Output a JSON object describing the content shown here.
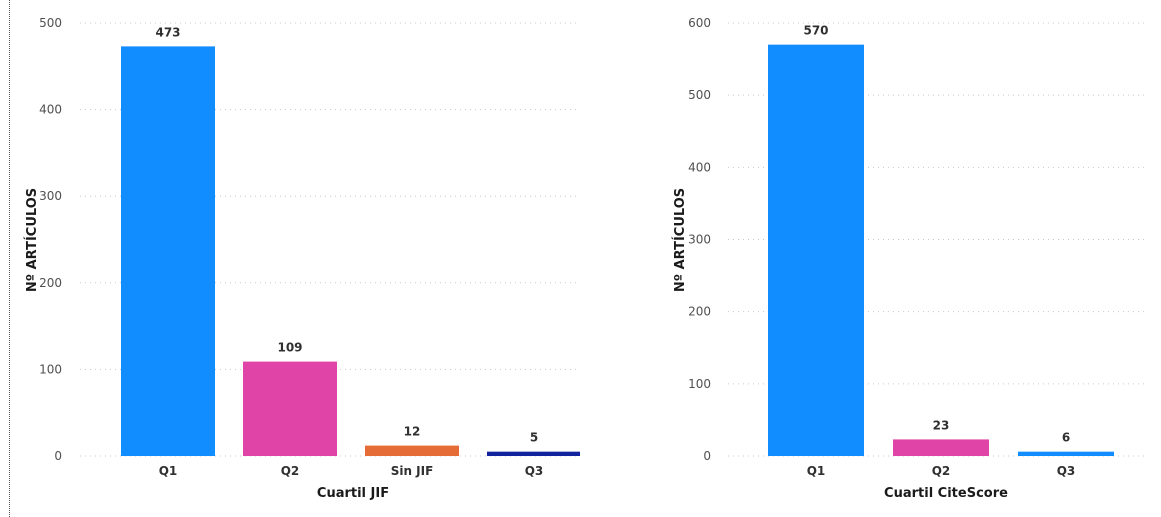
{
  "chart_data": [
    {
      "type": "bar",
      "categories": [
        "Q1",
        "Q2",
        "Sin JIF",
        "Q3"
      ],
      "values": [
        473,
        109,
        12,
        5
      ],
      "colors": [
        "#118DFF",
        "#E044A7",
        "#E66C37",
        "#12239E"
      ],
      "xlabel": "Cuartil JIF",
      "ylabel": "Nº ARTÍCULOS",
      "ylim": [
        0,
        500
      ],
      "yticks": [
        0,
        100,
        200,
        300,
        400,
        500
      ],
      "grid": true
    },
    {
      "type": "bar",
      "categories": [
        "Q1",
        "Q2",
        "Q3"
      ],
      "values": [
        570,
        23,
        6
      ],
      "colors": [
        "#118DFF",
        "#E044A7",
        "#118DFF"
      ],
      "xlabel": "Cuartil CiteScore",
      "ylabel": "Nº ARTÍCULOS",
      "ylim": [
        0,
        600
      ],
      "yticks": [
        0,
        100,
        200,
        300,
        400,
        500,
        600
      ],
      "grid": true
    }
  ]
}
